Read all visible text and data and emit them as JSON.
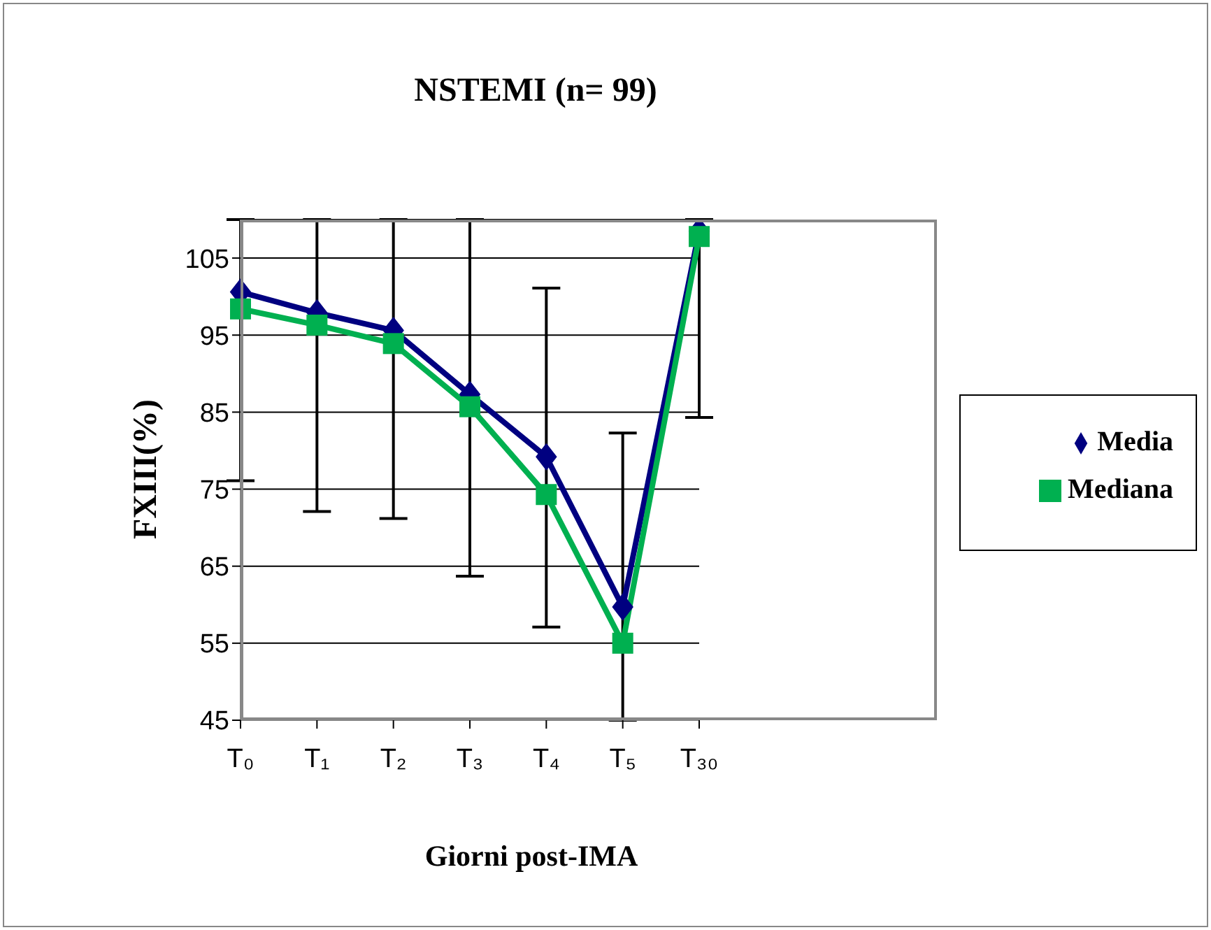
{
  "chart_data": {
    "type": "line",
    "title": "NSTEMI (n= 99)",
    "xlabel": "Giorni post-IMA",
    "ylabel": "FXIII(%)",
    "categories": [
      "T₀",
      "T₁",
      "T₂",
      "T₃",
      "T₄",
      "T₅",
      "T₃₀"
    ],
    "series": [
      {
        "name": "Media",
        "color": "#000080",
        "marker": "diamond",
        "values": [
          100.6,
          97.9,
          95.6,
          87.3,
          79.2,
          59.7,
          108.5
        ],
        "errors": [
          [
            76.1,
            110
          ],
          [
            72.1,
            110
          ],
          [
            71.2,
            110
          ],
          [
            63.7,
            110
          ],
          [
            57.1,
            101.1
          ],
          [
            45,
            82.3
          ],
          [
            84.3,
            110
          ]
        ]
      },
      {
        "name": "Mediana",
        "color": "#00b050",
        "marker": "square",
        "values": [
          98.4,
          96.3,
          93.9,
          85.7,
          74.3,
          55.0,
          107.8
        ]
      }
    ],
    "ylim": [
      45,
      110
    ],
    "yticks": [
      45,
      55,
      65,
      75,
      85,
      95,
      105
    ],
    "grid": "y",
    "legend": "right"
  }
}
